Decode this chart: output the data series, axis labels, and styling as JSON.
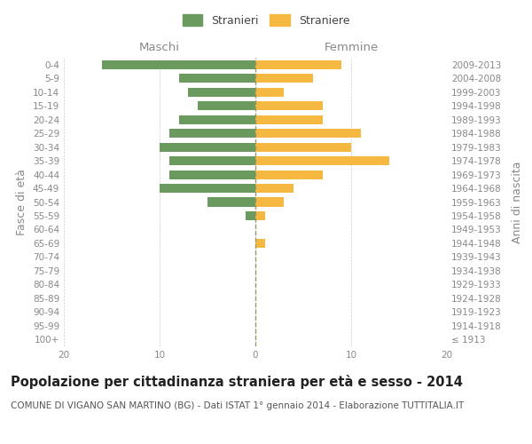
{
  "age_groups": [
    "100+",
    "95-99",
    "90-94",
    "85-89",
    "80-84",
    "75-79",
    "70-74",
    "65-69",
    "60-64",
    "55-59",
    "50-54",
    "45-49",
    "40-44",
    "35-39",
    "30-34",
    "25-29",
    "20-24",
    "15-19",
    "10-14",
    "5-9",
    "0-4"
  ],
  "birth_years": [
    "≤ 1913",
    "1914-1918",
    "1919-1923",
    "1924-1928",
    "1929-1933",
    "1934-1938",
    "1939-1943",
    "1944-1948",
    "1949-1953",
    "1954-1958",
    "1959-1963",
    "1964-1968",
    "1969-1973",
    "1974-1978",
    "1979-1983",
    "1984-1988",
    "1989-1993",
    "1994-1998",
    "1999-2003",
    "2004-2008",
    "2009-2013"
  ],
  "maschi": [
    0,
    0,
    0,
    0,
    0,
    0,
    0,
    0,
    0,
    1,
    5,
    10,
    9,
    9,
    10,
    9,
    8,
    6,
    7,
    8,
    16
  ],
  "femmine": [
    0,
    0,
    0,
    0,
    0,
    0,
    0,
    1,
    0,
    1,
    3,
    4,
    7,
    14,
    10,
    11,
    7,
    7,
    3,
    6,
    9
  ],
  "maschi_color": "#6a9a5e",
  "femmine_color": "#f5b942",
  "background_color": "#ffffff",
  "grid_color": "#cccccc",
  "xlim": 20,
  "title": "Popolazione per cittadinanza straniera per età e sesso - 2014",
  "subtitle": "COMUNE DI VIGANO SAN MARTINO (BG) - Dati ISTAT 1° gennaio 2014 - Elaborazione TUTTITALIA.IT",
  "ylabel_left": "Fasce di età",
  "ylabel_right": "Anni di nascita",
  "xlabel_maschi": "Maschi",
  "xlabel_femmine": "Femmine",
  "legend_maschi": "Stranieri",
  "legend_femmine": "Straniere",
  "title_fontsize": 10.5,
  "subtitle_fontsize": 7.5,
  "axis_label_fontsize": 9,
  "tick_fontsize": 7.5
}
